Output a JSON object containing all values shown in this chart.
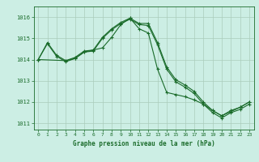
{
  "title": "Graphe pression niveau de la mer (hPa)",
  "background_color": "#cceee4",
  "grid_color": "#aaccbb",
  "line_color": "#1a6b2a",
  "xlim": [
    -0.5,
    23.5
  ],
  "ylim": [
    1010.7,
    1016.5
  ],
  "yticks": [
    1011,
    1012,
    1013,
    1014,
    1015,
    1016
  ],
  "xticks": [
    0,
    1,
    2,
    3,
    4,
    5,
    6,
    7,
    8,
    9,
    10,
    11,
    12,
    13,
    14,
    15,
    16,
    17,
    18,
    19,
    20,
    21,
    22,
    23
  ],
  "series": [
    {
      "x": [
        0,
        1,
        2,
        3,
        4,
        5,
        6,
        7,
        8,
        9,
        10,
        11,
        12,
        13,
        14,
        15,
        16,
        17,
        18,
        19,
        20,
        21,
        22,
        23
      ],
      "y": [
        1014.0,
        1014.8,
        1014.2,
        1013.95,
        1014.1,
        1014.4,
        1014.45,
        1015.05,
        1015.45,
        1015.75,
        1015.95,
        1015.7,
        1015.7,
        1014.8,
        1013.65,
        1013.05,
        1012.8,
        1012.5,
        1012.0,
        1011.6,
        1011.35,
        1011.6,
        1011.75,
        1012.0
      ]
    },
    {
      "x": [
        0,
        1,
        2,
        3,
        4,
        5,
        6,
        7,
        8,
        9,
        10,
        11,
        12,
        13,
        14,
        15,
        16,
        17,
        18,
        19,
        20,
        21,
        22,
        23
      ],
      "y": [
        1014.0,
        1014.75,
        1014.15,
        1013.9,
        1014.05,
        1014.35,
        1014.4,
        1015.0,
        1015.4,
        1015.7,
        1015.9,
        1015.65,
        1015.6,
        1014.7,
        1013.55,
        1012.95,
        1012.7,
        1012.4,
        1011.9,
        1011.5,
        1011.25,
        1011.5,
        1011.65,
        1011.9
      ]
    },
    {
      "x": [
        0,
        3,
        4,
        5,
        6,
        7,
        8,
        9,
        10,
        11,
        12,
        13,
        14,
        15,
        16,
        17,
        18,
        19,
        20,
        21,
        22,
        23
      ],
      "y": [
        1014.0,
        1013.95,
        1014.05,
        1014.35,
        1014.45,
        1014.55,
        1015.05,
        1015.65,
        1015.95,
        1015.45,
        1015.25,
        1013.55,
        1012.45,
        1012.35,
        1012.25,
        1012.1,
        1011.9,
        1011.6,
        1011.35,
        1011.55,
        1011.75,
        1012.0
      ]
    }
  ]
}
